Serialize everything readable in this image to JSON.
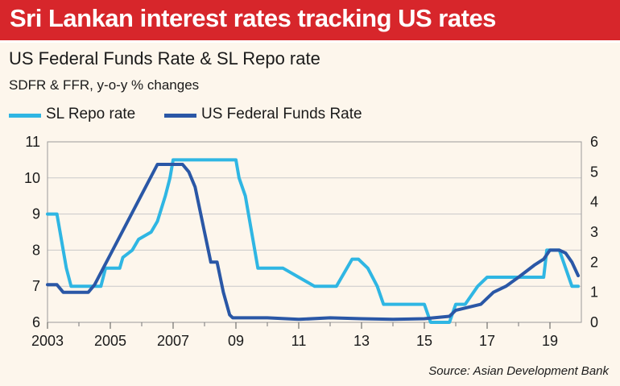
{
  "banner": {
    "text": "Sri Lankan interest rates tracking US rates"
  },
  "source": "Source: Asian Development Bank",
  "colors": {
    "banner": "#d7262b",
    "sl_repo": "#2fb6e3",
    "us_ffr": "#2a57a6",
    "grid": "#c9c9c9"
  },
  "chart_data": {
    "type": "line",
    "title": "US Federal Funds Rate & SL Repo rate",
    "subtitle": "SDFR & FFR, y-o-y % changes",
    "legend_position": "top-left",
    "grid": true,
    "x_tick_labels": [
      "2003",
      "2005",
      "2007",
      "09",
      "11",
      "13",
      "15",
      "17",
      "19"
    ],
    "x_tick_values": [
      2003,
      2005,
      2007,
      2009,
      2011,
      2013,
      2015,
      2017,
      2019
    ],
    "xlim": [
      2003,
      2020
    ],
    "ylim_left": [
      6,
      11
    ],
    "ylim_right": [
      0,
      6
    ],
    "y_left_ticks": [
      "6",
      "7",
      "8",
      "9",
      "10",
      "11"
    ],
    "y_right_ticks": [
      "0",
      "1",
      "2",
      "3",
      "4",
      "5",
      "6"
    ],
    "series": [
      {
        "name": "SL Repo rate",
        "axis": "left",
        "x": [
          2003.0,
          2003.3,
          2003.5,
          2003.6,
          2003.75,
          2004.0,
          2004.7,
          2004.85,
          2005.3,
          2005.4,
          2005.7,
          2005.9,
          2006.3,
          2006.5,
          2006.75,
          2006.9,
          2007.0,
          2007.2,
          2007.8,
          2008.2,
          2008.5,
          2009.0,
          2009.1,
          2009.3,
          2009.5,
          2009.7,
          2010.0,
          2010.5,
          2011.0,
          2011.5,
          2012.0,
          2012.2,
          2012.7,
          2012.9,
          2013.2,
          2013.5,
          2013.7,
          2015.0,
          2015.2,
          2015.5,
          2015.8,
          2016.0,
          2016.3,
          2016.7,
          2017.0,
          2017.5,
          2018.0,
          2018.8,
          2018.9,
          2019.3,
          2019.5,
          2019.7,
          2019.9
        ],
        "values": [
          9.0,
          9.0,
          8.0,
          7.5,
          7.0,
          7.0,
          7.0,
          7.5,
          7.5,
          7.8,
          8.0,
          8.3,
          8.5,
          8.8,
          9.5,
          10.0,
          10.5,
          10.5,
          10.5,
          10.5,
          10.5,
          10.5,
          10.0,
          9.5,
          8.5,
          7.5,
          7.5,
          7.5,
          7.25,
          7.0,
          7.0,
          7.0,
          7.75,
          7.75,
          7.5,
          7.0,
          6.5,
          6.5,
          6.0,
          6.0,
          6.0,
          6.5,
          6.5,
          7.0,
          7.25,
          7.25,
          7.25,
          7.25,
          8.0,
          8.0,
          7.5,
          7.0,
          7.0
        ]
      },
      {
        "name": "US Federal Funds Rate",
        "axis": "right",
        "x": [
          2003.0,
          2003.3,
          2003.5,
          2004.0,
          2004.3,
          2004.5,
          2005.0,
          2005.5,
          2006.0,
          2006.5,
          2007.0,
          2007.3,
          2007.5,
          2007.7,
          2008.0,
          2008.2,
          2008.4,
          2008.6,
          2008.8,
          2008.9,
          2009.0,
          2010.0,
          2011.0,
          2012.0,
          2013.0,
          2014.0,
          2015.0,
          2015.8,
          2016.0,
          2016.4,
          2016.8,
          2017.2,
          2017.6,
          2018.0,
          2018.5,
          2018.8,
          2019.0,
          2019.3,
          2019.5,
          2019.7,
          2019.9
        ],
        "values": [
          1.25,
          1.25,
          1.0,
          1.0,
          1.0,
          1.25,
          2.25,
          3.25,
          4.25,
          5.25,
          5.25,
          5.25,
          5.0,
          4.5,
          3.0,
          2.0,
          2.0,
          1.0,
          0.25,
          0.15,
          0.15,
          0.15,
          0.1,
          0.15,
          0.12,
          0.1,
          0.12,
          0.2,
          0.4,
          0.5,
          0.6,
          1.0,
          1.2,
          1.5,
          1.9,
          2.1,
          2.4,
          2.4,
          2.3,
          2.0,
          1.55
        ]
      }
    ]
  }
}
